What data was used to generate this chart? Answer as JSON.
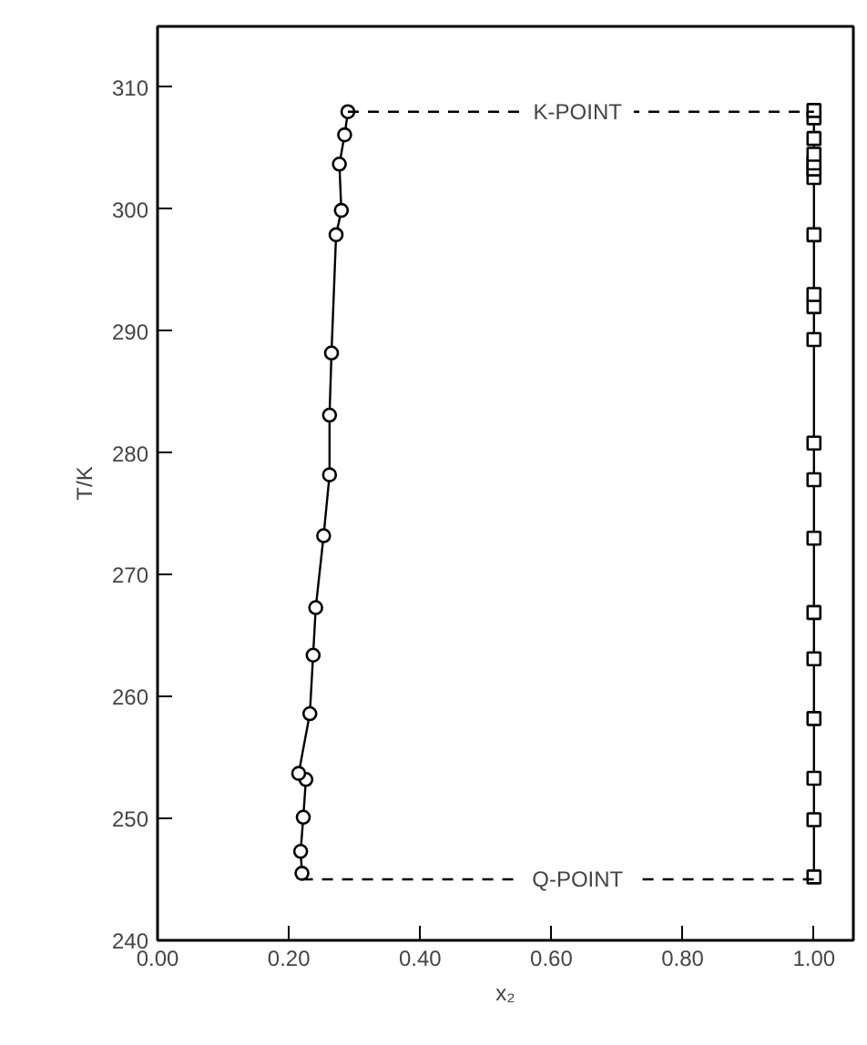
{
  "chart_data": {
    "type": "line",
    "xlabel": "x₂",
    "ylabel": "T/K",
    "xlim": [
      0,
      1.06
    ],
    "ylim": [
      240,
      315
    ],
    "xticks": [
      {
        "value": 0,
        "label": "0.00"
      },
      {
        "value": 0.2,
        "label": "0.20"
      },
      {
        "value": 0.4,
        "label": "0.40"
      },
      {
        "value": 0.6,
        "label": "0.60"
      },
      {
        "value": 0.8,
        "label": "0.80"
      },
      {
        "value": 1.0,
        "label": "1.00"
      }
    ],
    "yticks": [
      240,
      250,
      260,
      270,
      280,
      290,
      300,
      310
    ],
    "grid": false,
    "series": [
      {
        "color": "#000000",
        "marker": "circle",
        "line_style": "solid",
        "x": [
          0.22,
          0.218,
          0.222,
          0.226,
          0.215,
          0.232,
          0.237,
          0.241,
          0.253,
          0.262,
          0.262,
          0.265,
          0.272,
          0.28,
          0.277,
          0.285,
          0.29
        ],
        "values": [
          245.5,
          247.3,
          250.1,
          253.2,
          253.7,
          258.6,
          263.4,
          267.3,
          273.2,
          278.2,
          283.1,
          288.2,
          297.9,
          299.9,
          303.7,
          306.1,
          308
        ]
      },
      {
        "color": "#000000",
        "marker": "square",
        "line_style": "solid",
        "x": [
          1.0,
          1.0,
          1.0,
          1.0,
          1.0,
          1.0,
          1.0,
          1.0,
          1.0,
          1.0,
          1.0,
          1.0,
          1.0,
          1.0,
          1.0,
          1.0,
          1.0,
          1.0,
          1.0,
          1.0
        ],
        "values": [
          245.2,
          249.9,
          253.3,
          258.2,
          263.1,
          266.9,
          273.0,
          277.8,
          280.8,
          289.3,
          292.0,
          293.0,
          297.9,
          302.6,
          303.3,
          303.8,
          304.5,
          305.8,
          307.5,
          308.1
        ]
      },
      {
        "color": "#000000",
        "marker": "none",
        "line_style": "dashed",
        "x": [
          0.29,
          1.0
        ],
        "values": [
          308,
          308
        ]
      },
      {
        "color": "#000000",
        "marker": "none",
        "line_style": "dashed",
        "x": [
          0.22,
          1.0
        ],
        "values": [
          245,
          245
        ]
      }
    ],
    "annotations": [
      {
        "text": "K-POINT",
        "x": 0.64,
        "y": 308
      },
      {
        "text": "Q-POINT",
        "x": 0.64,
        "y": 245
      }
    ]
  }
}
